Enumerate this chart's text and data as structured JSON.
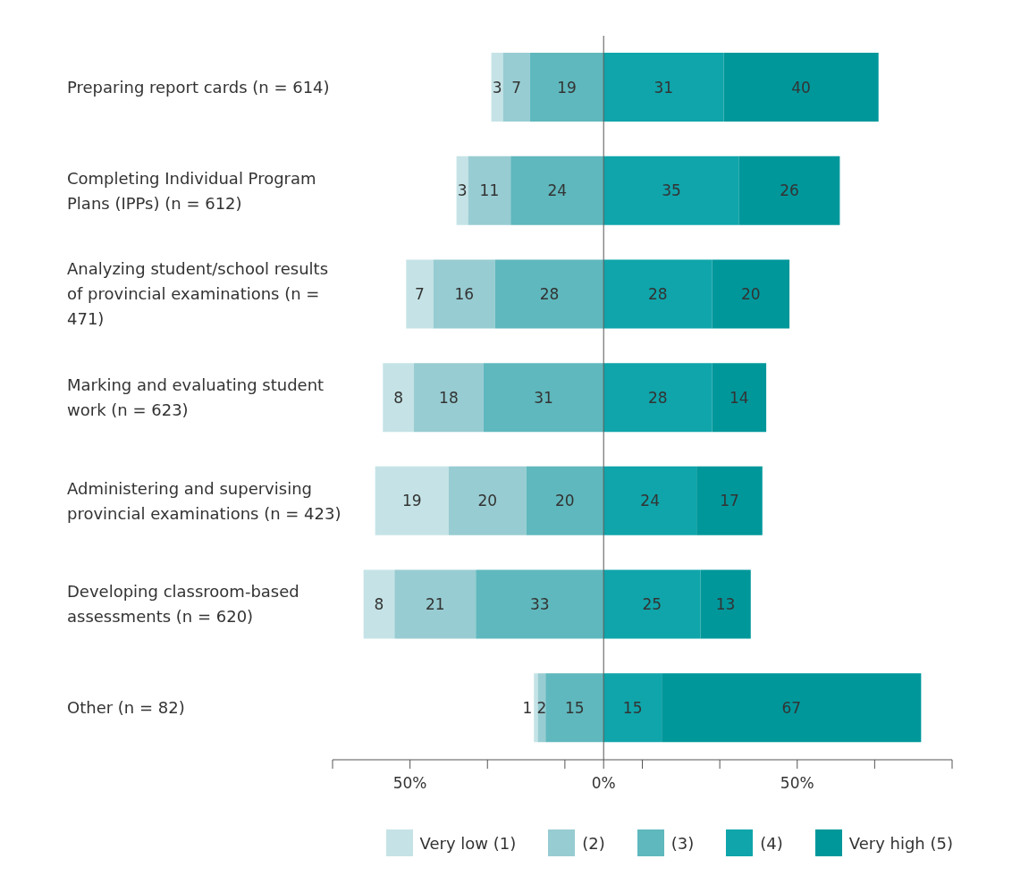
{
  "chart_data": {
    "type": "bar",
    "orientation": "horizontal",
    "data_labels": true,
    "categories": [
      "Preparing report cards (n = 614)",
      "Completing Individual Program Plans (IPPs) (n = 612)",
      "Analyzing student/school results of provincial examinations (n = 471)",
      "Marking and evaluating student work (n = 623)",
      "Administering and supervising provincial examinations (n = 423)",
      "Developing classroom-based assessments (n = 620)",
      "Other (n = 82)"
    ],
    "series": [
      {
        "name": "Very low (1)",
        "color": "#c5e3e6",
        "values": [
          3,
          3,
          7,
          8,
          19,
          8,
          1
        ],
        "base": [
          -29,
          -38,
          -51,
          -57,
          -59,
          -62,
          -18
        ]
      },
      {
        "name": "(2)",
        "color": "#97ccd2",
        "values": [
          7,
          11,
          16,
          18,
          20,
          21,
          2
        ],
        "base": [
          -26,
          -35,
          -44,
          -49,
          -40,
          -54,
          -17
        ]
      },
      {
        "name": "(3)",
        "color": "#5fb8bd",
        "values": [
          19,
          24,
          28,
          31,
          20,
          33,
          15
        ],
        "base": [
          -19,
          -24,
          -28,
          -31,
          -20,
          -33,
          -15
        ]
      },
      {
        "name": "(4)",
        "color": "#0fa5ab",
        "values": [
          31,
          35,
          28,
          28,
          24,
          25,
          15
        ],
        "base": [
          0,
          0,
          0,
          0,
          0,
          0,
          0
        ]
      },
      {
        "name": "Very high (5)",
        "color": "#00979b",
        "values": [
          40,
          26,
          20,
          14,
          17,
          13,
          67
        ],
        "base": [
          31,
          35,
          28,
          28,
          24,
          25,
          15
        ]
      }
    ],
    "xlim": [
      -70,
      90
    ],
    "xticks": [
      {
        "value": -70,
        "label": null
      },
      {
        "value": -50,
        "label": "50%"
      },
      {
        "value": -30,
        "label": null
      },
      {
        "value": -10,
        "label": null
      },
      {
        "value": 0,
        "label": "0%"
      },
      {
        "value": 10,
        "label": null
      },
      {
        "value": 30,
        "label": null
      },
      {
        "value": 50,
        "label": "50%"
      },
      {
        "value": 70,
        "label": null
      },
      {
        "value": 90,
        "label": null
      }
    ],
    "ref_lines": [
      {
        "axis": "x",
        "value": 0,
        "color": "#555555"
      }
    ],
    "legend": "bottom"
  }
}
